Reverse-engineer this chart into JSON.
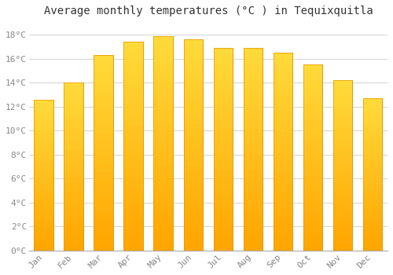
{
  "title": "Average monthly temperatures (°C ) in Tequixquitla",
  "months": [
    "Jan",
    "Feb",
    "Mar",
    "Apr",
    "May",
    "Jun",
    "Jul",
    "Aug",
    "Sep",
    "Oct",
    "Nov",
    "Dec"
  ],
  "values": [
    12.6,
    14.0,
    16.3,
    17.4,
    17.9,
    17.6,
    16.9,
    16.9,
    16.5,
    15.5,
    14.2,
    12.7
  ],
  "bar_color_top": "#FFD966",
  "bar_color_bottom": "#FFA500",
  "bar_color_edge": "#E69500",
  "ylim": [
    0,
    19
  ],
  "yticks": [
    0,
    2,
    4,
    6,
    8,
    10,
    12,
    14,
    16,
    18
  ],
  "background_color": "#FFFFFF",
  "grid_color": "#CCCCCC",
  "title_fontsize": 10,
  "tick_fontsize": 8,
  "tick_color": "#888888",
  "title_color": "#333333",
  "font_family": "monospace",
  "bar_width": 0.65
}
